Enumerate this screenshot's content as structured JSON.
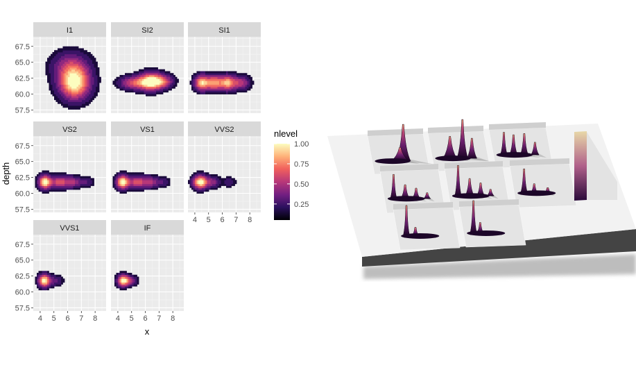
{
  "chart_data": {
    "type": "heatmap",
    "subtype": "faceted 2D density (filled contour)",
    "title": "",
    "xlabel": "x",
    "ylabel": "depth",
    "xlim": [
      3.5,
      8.8
    ],
    "ylim": [
      57.0,
      69.0
    ],
    "x_ticks": [
      4,
      5,
      6,
      7,
      8
    ],
    "y_ticks": [
      57.5,
      60.0,
      62.5,
      65.0,
      67.5
    ],
    "y_tick_labels": [
      "57.5",
      "60.0",
      "62.5",
      "65.0",
      "67.5"
    ],
    "colorbar": {
      "title": "nlevel",
      "range": [
        0.05,
        1.0
      ],
      "ticks": [
        0.25,
        0.5,
        0.75,
        1.0
      ],
      "tick_labels": [
        "0.25",
        "0.50",
        "0.75",
        "1.00"
      ],
      "colormap": [
        "#000004",
        "#2c115f",
        "#721f81",
        "#b73779",
        "#f1605d",
        "#feb078",
        "#fcfdbf"
      ]
    },
    "facets": [
      {
        "name": "I1",
        "peaks": [
          {
            "x": 6.5,
            "y": 61.8,
            "sx": 0.75,
            "sy": 1.7,
            "w": 1.0
          },
          {
            "x": 6.2,
            "y": 64.5,
            "sx": 0.9,
            "sy": 1.5,
            "w": 0.35
          }
        ]
      },
      {
        "name": "SI2",
        "peaks": [
          {
            "x": 6.4,
            "y": 62.0,
            "sx": 0.55,
            "sy": 0.9,
            "w": 1.0
          },
          {
            "x": 5.2,
            "y": 61.8,
            "sx": 0.7,
            "sy": 0.7,
            "w": 0.55
          },
          {
            "x": 7.3,
            "y": 62.0,
            "sx": 0.5,
            "sy": 0.7,
            "w": 0.5
          }
        ]
      },
      {
        "name": "SI1",
        "peaks": [
          {
            "x": 4.5,
            "y": 61.8,
            "sx": 0.35,
            "sy": 0.8,
            "w": 0.85
          },
          {
            "x": 5.4,
            "y": 61.8,
            "sx": 0.4,
            "sy": 0.8,
            "w": 0.75
          },
          {
            "x": 6.4,
            "y": 61.8,
            "sx": 0.4,
            "sy": 0.8,
            "w": 0.8
          },
          {
            "x": 7.4,
            "y": 61.8,
            "sx": 0.4,
            "sy": 0.7,
            "w": 0.45
          }
        ]
      },
      {
        "name": "VS2",
        "peaks": [
          {
            "x": 4.35,
            "y": 61.8,
            "sx": 0.3,
            "sy": 0.7,
            "w": 1.0
          },
          {
            "x": 5.4,
            "y": 61.8,
            "sx": 0.45,
            "sy": 0.65,
            "w": 0.55
          },
          {
            "x": 6.4,
            "y": 61.8,
            "sx": 0.4,
            "sy": 0.6,
            "w": 0.4
          },
          {
            "x": 7.4,
            "y": 61.8,
            "sx": 0.35,
            "sy": 0.5,
            "w": 0.2
          }
        ]
      },
      {
        "name": "VS1",
        "peaks": [
          {
            "x": 4.35,
            "y": 61.8,
            "sx": 0.3,
            "sy": 0.7,
            "w": 1.0
          },
          {
            "x": 5.4,
            "y": 61.8,
            "sx": 0.45,
            "sy": 0.65,
            "w": 0.55
          },
          {
            "x": 6.4,
            "y": 61.8,
            "sx": 0.4,
            "sy": 0.6,
            "w": 0.4
          },
          {
            "x": 7.3,
            "y": 61.8,
            "sx": 0.35,
            "sy": 0.5,
            "w": 0.18
          }
        ]
      },
      {
        "name": "VVS2",
        "peaks": [
          {
            "x": 4.4,
            "y": 61.8,
            "sx": 0.35,
            "sy": 0.7,
            "w": 1.0
          },
          {
            "x": 5.3,
            "y": 61.8,
            "sx": 0.35,
            "sy": 0.6,
            "w": 0.35
          },
          {
            "x": 6.5,
            "y": 61.8,
            "sx": 0.3,
            "sy": 0.5,
            "w": 0.18
          }
        ]
      },
      {
        "name": "VVS1",
        "peaks": [
          {
            "x": 4.3,
            "y": 61.8,
            "sx": 0.28,
            "sy": 0.65,
            "w": 1.0
          },
          {
            "x": 5.1,
            "y": 61.8,
            "sx": 0.35,
            "sy": 0.55,
            "w": 0.25
          }
        ]
      },
      {
        "name": "IF",
        "peaks": [
          {
            "x": 4.4,
            "y": 61.8,
            "sx": 0.28,
            "sy": 0.6,
            "w": 1.0
          },
          {
            "x": 5.0,
            "y": 61.8,
            "sx": 0.3,
            "sy": 0.5,
            "w": 0.3
          }
        ]
      }
    ],
    "rendering_3d": {
      "description_label": "3D rendering of the same faceted density plot",
      "facet_heights": [
        0.85,
        0.9,
        0.6,
        0.55,
        0.7,
        0.55,
        0.7,
        0.75
      ]
    }
  }
}
